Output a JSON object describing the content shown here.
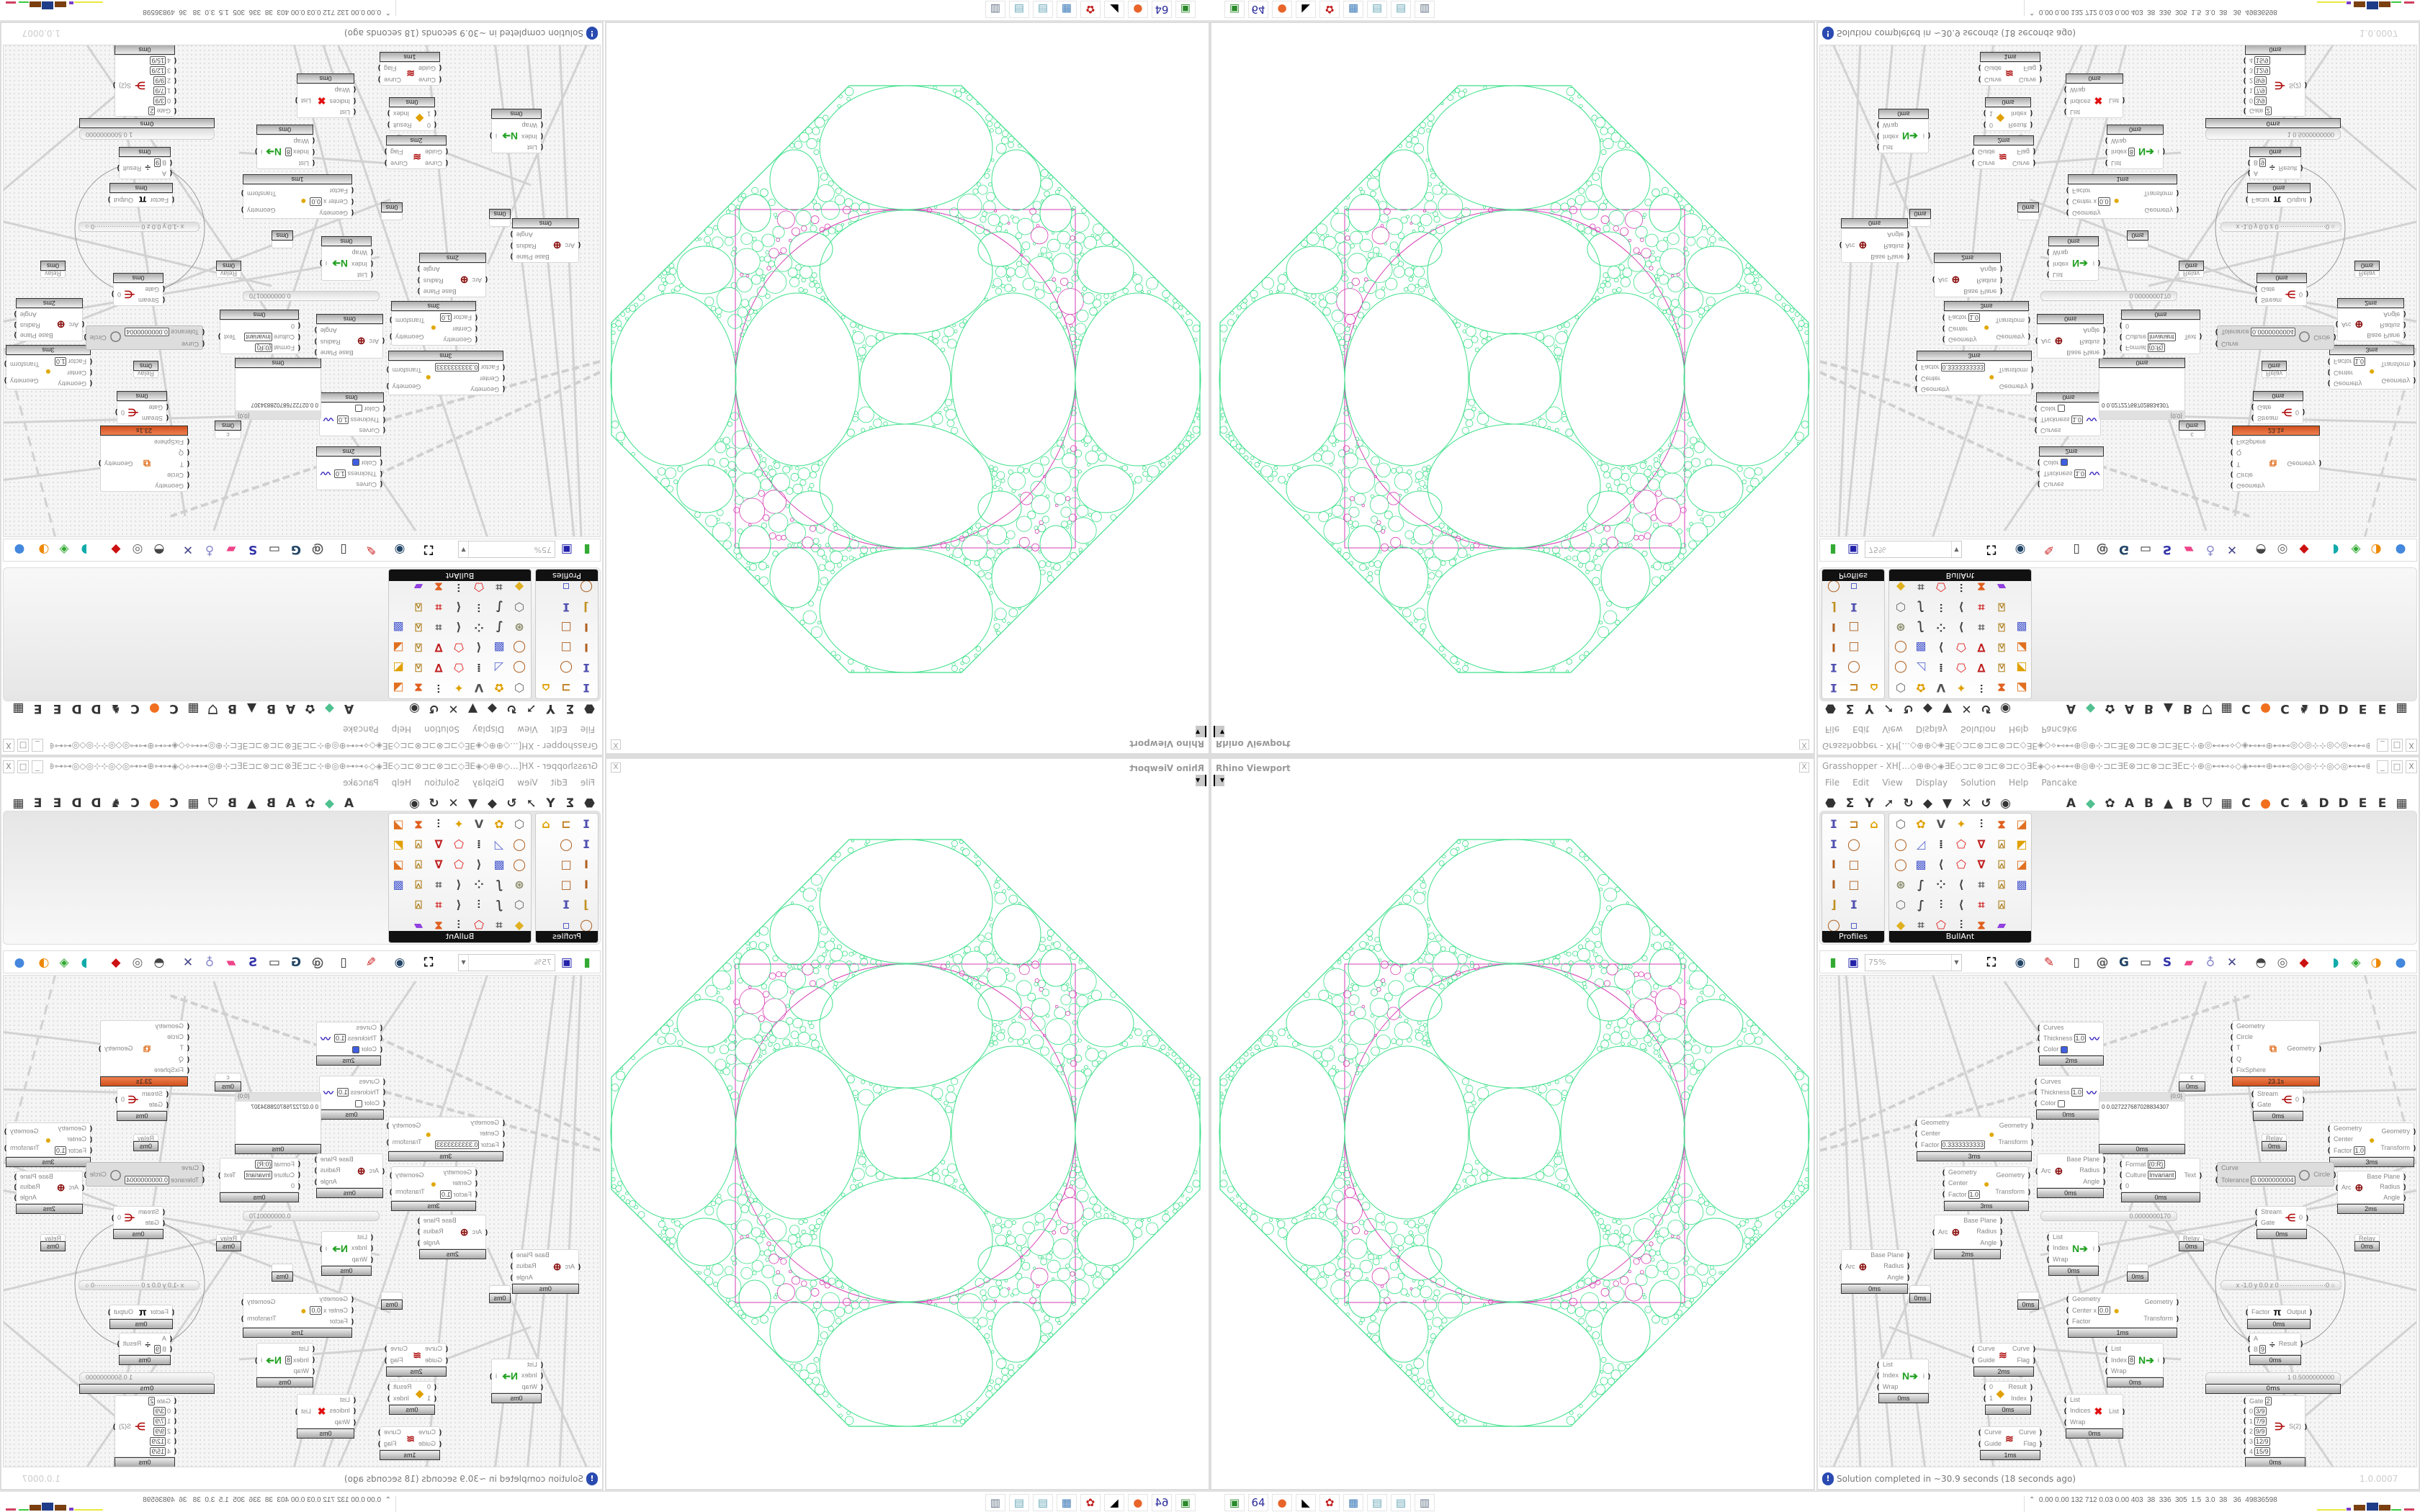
{
  "viewport": {
    "title": "Rhino Viewport",
    "close": "X",
    "dropdown": "▼",
    "colors": {
      "circles": "#3ee08a",
      "inversion": "#d63cb4"
    }
  },
  "gh": {
    "title": "Grasshopper - XH[...◇⊕⊕◇◈∃E◇⊐⊏⊗⊐⊏⊗⊐⊏◇∃E◈◇⟡⊷⊷⊕◎⊕⊹⊐⊏∃E⊗⊐⊏⊗⊐⊏∃E⊏⊹⊕◎⊷⊷⟡◇◈⊷⊷⊕⊷⊷◎◇◎⊹⊹◎◇◎⊷⊷⊕⊷⊷◈◇⊷⊷◎⊕⊹⊐⊏∃E⊗⊐⊏⊗◇...",
    "window_buttons": [
      "_",
      "□",
      "X"
    ],
    "menu": [
      "File",
      "Edit",
      "View",
      "Display",
      "Solution",
      "Help",
      "Pancake"
    ],
    "tabs_left": [
      "⬣",
      "Σ",
      "Y",
      "➚",
      "↻",
      "◆",
      "▼",
      "✕",
      "↺",
      "◉"
    ],
    "tabs_right": [
      "A",
      "◆",
      "✿",
      "A",
      "B",
      "▲",
      "B",
      "⛉",
      "▦",
      "C",
      "●",
      "C",
      "♞",
      "D",
      "D",
      "E",
      "E",
      "▦"
    ],
    "ribbon": {
      "profiles": {
        "label": "Profiles",
        "icons": [
          "profile-i-beam",
          "profile-channel",
          "profile-arch",
          "profile-i-beam",
          "profile-ring",
          "",
          "profile-i",
          "profile-square",
          "",
          "profile-i",
          "profile-square",
          "",
          "profile-angle",
          "profile-i-beam",
          "",
          "profile-ring",
          "profile-points",
          ""
        ]
      },
      "bullant": {
        "label": "BullAnt",
        "icons": [
          "box",
          "flower",
          "v-lines",
          "star-point",
          "ladder",
          "warp",
          "surface-red",
          "ring",
          "plane",
          "grid-lines",
          "polygon-red",
          "v-red",
          "lock",
          "surface-yellow",
          "ring",
          "cube",
          "polyline",
          "polygon-red",
          "v-red",
          "lock",
          "surface-red",
          "sphere",
          "curve",
          "points",
          "polyline",
          "frame",
          "lock",
          "cube",
          "box",
          "curve",
          "ladder",
          "polyline",
          "frame-red",
          "lock",
          "",
          "gem",
          "frame",
          "polygon-red",
          "ladder",
          "warp",
          "rainbow",
          ""
        ]
      }
    },
    "canvas_toolbar": {
      "zoom": "75%",
      "icons": [
        "new-file",
        "save",
        "zoom-extents",
        "eye",
        "sketch",
        "plugin",
        "at-sign",
        "gha",
        "window",
        "search",
        "package",
        "bulb",
        "twist",
        "bell",
        "ring",
        "red-shape",
        "teal-shape",
        "green-shape",
        "half-sphere",
        "blue-sphere"
      ]
    },
    "nodes": [
      {
        "kind": "comp",
        "inputs": [
          {
            "l": "Curves"
          },
          {
            "l": "Thickness",
            "v": "1.0"
          },
          {
            "l": "Color",
            "sw": "#3f5fe0"
          }
        ],
        "outputs": [],
        "icon": "custom-preview",
        "footer": "2ms"
      },
      {
        "kind": "comp",
        "inputs": [
          {
            "l": "Curves"
          },
          {
            "l": "Thickness",
            "v": "1.0"
          },
          {
            "l": "Color",
            "sw": "#ffffff"
          }
        ],
        "outputs": [],
        "icon": "custom-preview",
        "footer": "0ms"
      },
      {
        "kind": "panel",
        "header": "{0;0}",
        "text": "0 0.027227687028834307",
        "footer": "0ms"
      },
      {
        "kind": "comp",
        "inputs": [
          {
            "l": "Geometry"
          },
          {
            "l": "Center"
          },
          {
            "l": "Factor",
            "v": "0.3333333333"
          }
        ],
        "outputs": [
          {
            "l": "Geometry"
          },
          {
            "l": "Transform"
          }
        ],
        "icon": "scale",
        "footer": "3ms"
      },
      {
        "kind": "comp",
        "inputs": [
          {
            "l": "Geometry"
          },
          {
            "l": "Center"
          },
          {
            "l": "Factor",
            "v": "1.0"
          }
        ],
        "outputs": [
          {
            "l": "Geometry"
          },
          {
            "l": "Transform"
          }
        ],
        "icon": "scale",
        "footer": "3ms"
      },
      {
        "kind": "comp",
        "inputs": [
          {
            "l": "Arc"
          }
        ],
        "outputs": [
          {
            "l": "Base Plane"
          },
          {
            "l": "Radius"
          },
          {
            "l": "Angle"
          }
        ],
        "icon": "arc",
        "footer": "0ms"
      },
      {
        "kind": "comp",
        "inputs": [
          {
            "l": "Geometry"
          },
          {
            "l": "Circle"
          },
          {
            "l": "T"
          },
          {
            "l": "Q"
          },
          {
            "l": "FixSphere"
          }
        ],
        "outputs": [
          {
            "l": "Geometry"
          }
        ],
        "icon": "pack",
        "footer": "23.1s",
        "hot": true
      },
      {
        "kind": "param",
        "text": "c",
        "footer": "0ms"
      },
      {
        "kind": "comp",
        "inputs": [
          {
            "l": "Stream"
          },
          {
            "l": "Gate"
          }
        ],
        "outputs": [
          {
            "l": "0"
          }
        ],
        "icon": "stream-gate",
        "footer": "0ms"
      },
      {
        "kind": "param",
        "text": "Relay",
        "footer": "0ms"
      },
      {
        "kind": "comp",
        "inputs": [
          {
            "l": "Geometry"
          },
          {
            "l": "Center"
          },
          {
            "l": "Factor",
            "v": "1.0"
          }
        ],
        "outputs": [
          {
            "l": "Geometry"
          },
          {
            "l": "Transform"
          }
        ],
        "icon": "scale",
        "footer": "3ms"
      },
      {
        "kind": "comp",
        "inputs": [
          {
            "l": "Arc"
          }
        ],
        "outputs": [
          {
            "l": "Base Plane"
          },
          {
            "l": "Radius"
          },
          {
            "l": "Angle"
          }
        ],
        "icon": "arc",
        "footer": "2ms"
      },
      {
        "kind": "comp",
        "inputs": [
          {
            "l": "Format",
            "v": "{0:R}"
          },
          {
            "l": "Culture",
            "v": "Invariant"
          },
          {
            "l": "0"
          }
        ],
        "outputs": [
          {
            "l": "Text"
          }
        ],
        "icon": "",
        "footer": "0ms"
      },
      {
        "kind": "comp",
        "disabled": true,
        "inputs": [
          {
            "l": "Curve"
          },
          {
            "l": "Tolerance",
            "v": "0.0000000004"
          }
        ],
        "outputs": [
          {
            "l": "Circle"
          }
        ],
        "icon": "fit-circle",
        "footer": ""
      },
      {
        "kind": "comp",
        "inputs": [
          {
            "l": "Arc"
          }
        ],
        "outputs": [
          {
            "l": "Base Plane"
          },
          {
            "l": "Radius"
          },
          {
            "l": "Angle"
          }
        ],
        "icon": "arc",
        "footer": "0ms"
      },
      {
        "kind": "comp",
        "inputs": [
          {
            "l": "Arc"
          }
        ],
        "outputs": [
          {
            "l": "Base Plane"
          },
          {
            "l": "Radius"
          },
          {
            "l": "Angle"
          }
        ],
        "icon": "arc",
        "footer": "2ms"
      },
      {
        "kind": "param",
        "text": "",
        "footer": "0ms"
      },
      {
        "kind": "param",
        "text": "",
        "footer": "0ms"
      },
      {
        "kind": "comp",
        "inputs": [
          {
            "l": "List"
          },
          {
            "l": "Index"
          },
          {
            "l": "Wrap"
          }
        ],
        "outputs": [
          {
            "l": "i"
          }
        ],
        "icon": "list-item",
        "footer": "0ms"
      },
      {
        "kind": "comp",
        "inputs": [
          {
            "l": "List"
          },
          {
            "l": "Index"
          },
          {
            "l": "Wrap"
          }
        ],
        "outputs": [
          {
            "l": "i"
          }
        ],
        "icon": "list-item",
        "footer": "0ms"
      },
      {
        "kind": "comp",
        "inputs": [
          {
            "l": "Curve"
          },
          {
            "l": "Guide"
          }
        ],
        "outputs": [
          {
            "l": "Curve"
          },
          {
            "l": "Flag"
          }
        ],
        "icon": "curve-guide",
        "footer": "2ms"
      },
      {
        "kind": "comp",
        "inputs": [
          {
            "l": "0"
          },
          {
            "l": "1"
          }
        ],
        "outputs": [
          {
            "l": "Result"
          },
          {
            "l": "Index"
          }
        ],
        "icon": "pick",
        "footer": "0ms"
      },
      {
        "kind": "comp",
        "inputs": [
          {
            "l": "Curve"
          },
          {
            "l": "Guide"
          }
        ],
        "outputs": [
          {
            "l": "Curve"
          },
          {
            "l": "Flag"
          }
        ],
        "icon": "curve-guide",
        "footer": "1ms"
      },
      {
        "kind": "comp",
        "inputs": [
          {
            "l": "List"
          },
          {
            "l": "Indices"
          },
          {
            "l": "Wrap"
          }
        ],
        "outputs": [
          {
            "l": "List"
          }
        ],
        "icon": "cull-index",
        "footer": "0ms"
      },
      {
        "kind": "comp",
        "inputs": [
          {
            "l": "Geometry"
          },
          {
            "l": "Center x",
            "v": "0.0"
          },
          {
            "l": "Factor"
          }
        ],
        "outputs": [
          {
            "l": "Geometry"
          },
          {
            "l": "Transform"
          }
        ],
        "icon": "scale",
        "footer": "1ms"
      },
      {
        "kind": "slider",
        "text": "0.0000000170"
      },
      {
        "kind": "comp",
        "inputs": [
          {
            "l": "Stream"
          },
          {
            "l": "Gate"
          }
        ],
        "outputs": [
          {
            "l": "0"
          }
        ],
        "icon": "stream-gate",
        "footer": "0ms"
      },
      {
        "kind": "param",
        "text": "Relay",
        "footer": "0ms"
      },
      {
        "kind": "param",
        "text": "Relay",
        "footer": "0ms"
      },
      {
        "kind": "param",
        "text": "",
        "footer": "0ms"
      },
      {
        "kind": "comp",
        "inputs": [
          {
            "l": "List"
          },
          {
            "l": "Index",
            "v": "8"
          },
          {
            "l": "Wrap"
          }
        ],
        "outputs": [
          {
            "l": "i"
          }
        ],
        "icon": "list-item",
        "footer": "0ms"
      },
      {
        "kind": "slider",
        "text": "x -1.0  y 0.0  z 0   ·····················0 ○"
      },
      {
        "kind": "comp",
        "inputs": [
          {
            "l": "Factor"
          }
        ],
        "outputs": [
          {
            "l": "Output"
          }
        ],
        "icon": "pi",
        "footer": "0ms"
      },
      {
        "kind": "comp",
        "inputs": [
          {
            "l": "A"
          },
          {
            "l": "B",
            "v": "9"
          }
        ],
        "outputs": [
          {
            "l": "Result"
          }
        ],
        "icon": "division",
        "footer": "0ms"
      },
      {
        "kind": "slider",
        "text": "1 0.5000000000",
        "footer": "0ms"
      },
      {
        "kind": "comp",
        "inputs": [
          {
            "l": "Gate",
            "v": "2"
          },
          {
            "l": "0",
            "v": "3/9"
          },
          {
            "l": "1",
            "v": "7/9"
          },
          {
            "l": "2",
            "v": "9/9"
          },
          {
            "l": "3",
            "v": "12/9"
          },
          {
            "l": "4",
            "v": "15/9"
          }
        ],
        "outputs": [
          {
            "l": "S(2)"
          }
        ],
        "icon": "stream-filter",
        "footer": "0ms"
      }
    ],
    "status": {
      "message": "Solution completed in ~30.9 seconds (18 seconds ago)",
      "version": "1.0.0007"
    }
  },
  "taskbar": {
    "perf": "⌃  0.00 0.00 132 712 0.03 0.00 403  38  336  305  1.5  3.0  38   36  49836598",
    "perf_bar_colors": [
      "#e8e83c",
      "#7a3dc8",
      "#7a4010",
      "#1f3c88",
      "#7a4010",
      "#3cc83c",
      "#d04060"
    ],
    "apps": [
      {
        "name": "drive-icon",
        "glyph": "▣",
        "color": "#2a8a2a",
        "label": ""
      },
      {
        "name": "floppy-icon",
        "glyph": "64",
        "color": "#2a2a9a",
        "label": "64"
      },
      {
        "name": "firefox-icon",
        "glyph": "●",
        "color": "#e8642a",
        "label": ""
      },
      {
        "name": "wolf-icon",
        "glyph": "◣",
        "color": "#000000",
        "label": ""
      },
      {
        "name": "red-app-icon",
        "glyph": "✿",
        "color": "#c02020",
        "label": ""
      },
      {
        "name": "calculator-icon",
        "glyph": "▦",
        "color": "#3c7ab8",
        "label": ""
      },
      {
        "name": "notepad-icon",
        "glyph": "▤",
        "color": "#6aa8b8",
        "label": ""
      },
      {
        "name": "notepad-icon",
        "glyph": "▤",
        "color": "#6aa8b8",
        "label": ""
      },
      {
        "name": "scroll-icon",
        "glyph": "▥",
        "color": "#667788",
        "label": ""
      }
    ]
  }
}
